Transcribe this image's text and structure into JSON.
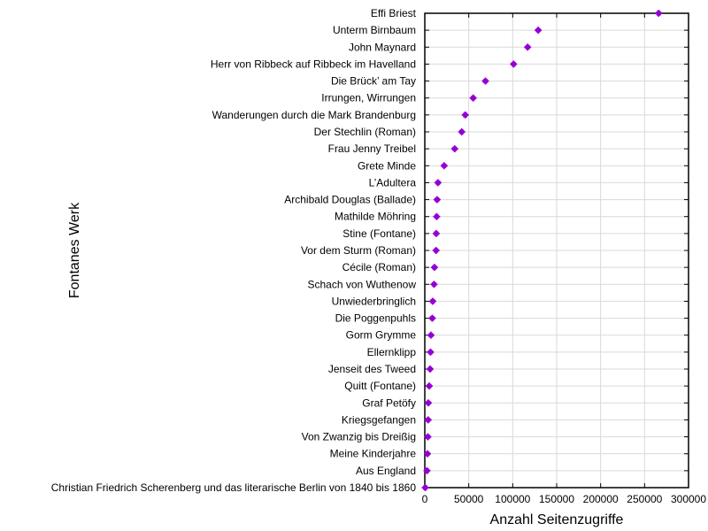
{
  "chart_data": {
    "type": "scatter",
    "orientation": "horizontal",
    "xlabel": "Anzahl Seitenzugriffe",
    "ylabel": "Fontanes Werk",
    "xlim": [
      0,
      300000
    ],
    "xticks": [
      0,
      50000,
      100000,
      150000,
      200000,
      250000,
      300000
    ],
    "xtick_labels": [
      "0",
      "50000",
      "100000",
      "150000",
      "200000",
      "250000",
      "300000"
    ],
    "grid": true,
    "marker_color": "#9400d3",
    "categories": [
      "Effi Briest",
      "Unterm Birnbaum",
      "John Maynard",
      "Herr von Ribbeck auf Ribbeck im Havelland",
      "Die Brück’ am Tay",
      "Irrungen, Wirrungen",
      "Wanderungen durch die Mark Brandenburg",
      "Der Stechlin (Roman)",
      "Frau Jenny Treibel",
      "Grete Minde",
      "L’Adultera",
      "Archibald Douglas (Ballade)",
      "Mathilde Möhring",
      "Stine (Fontane)",
      "Vor dem Sturm (Roman)",
      "Cécile (Roman)",
      "Schach von Wuthenow",
      "Unwiederbringlich",
      "Die Poggenpuhls",
      "Gorm Grymme",
      "Ellernklipp",
      "Jenseit des Tweed",
      "Quitt (Fontane)",
      "Graf Petöfy",
      "Kriegsgefangen",
      "Von Zwanzig bis Dreißig",
      "Meine Kinderjahre",
      "Aus England",
      "Christian Friedrich Scherenberg und das literarische Berlin von 1840 bis 1860"
    ],
    "values": [
      266000,
      129000,
      117000,
      101000,
      69000,
      55000,
      46000,
      42000,
      34000,
      22000,
      15000,
      14000,
      13500,
      13000,
      12800,
      11000,
      10500,
      9000,
      8500,
      7000,
      6500,
      6000,
      5000,
      4000,
      3800,
      3500,
      3000,
      2500,
      500
    ]
  }
}
